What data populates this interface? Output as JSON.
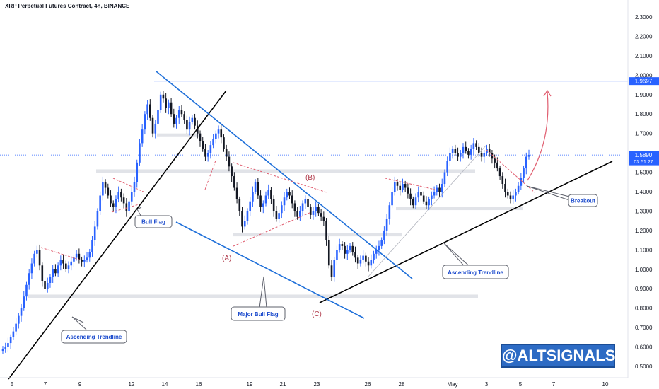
{
  "header": {
    "title": "XRP Perpetual Futures Contract, 4h, BINANCE"
  },
  "watermark": {
    "text": "@ALTSIGNALS"
  },
  "colors": {
    "bull": "#2962ff",
    "bear": "#131722",
    "trend_blue": "#1e6fd9",
    "trend_black": "#000000",
    "pattern_red": "#e05d6f",
    "support_zone": "#e1e3e8"
  },
  "chart_data": {
    "type": "candlestick",
    "title": "XRP Perpetual Futures Contract, 4h, BINANCE",
    "y_axis": {
      "ticks": [
        "2.3000",
        "2.2000",
        "2.1000",
        "2.0000",
        "1.9000",
        "1.8000",
        "1.7000",
        "1.6000",
        "1.5000",
        "1.4000",
        "1.3000",
        "1.2000",
        "1.1000",
        "1.0000",
        "0.9000",
        "0.8000",
        "0.7000",
        "0.6000",
        "0.5000"
      ],
      "tick_values": [
        2.3,
        2.2,
        2.1,
        2.0,
        1.9,
        1.8,
        1.7,
        1.6,
        1.5,
        1.4,
        1.3,
        1.2,
        1.1,
        1.0,
        0.9,
        0.8,
        0.7,
        0.6,
        0.5
      ],
      "range": [
        0.48,
        2.34
      ]
    },
    "x_axis": {
      "ticks": [
        "5",
        "7",
        "9",
        "12",
        "14",
        "16",
        "19",
        "21",
        "23",
        "26",
        "28",
        "May",
        "3",
        "5",
        "7",
        "10"
      ]
    },
    "price_labels": [
      {
        "label": "1.9697",
        "value": 1.9697,
        "color": "#2962ff"
      },
      {
        "label": "1.5890",
        "sub": "03:51:27",
        "value": 1.589,
        "color": "#2962ff"
      }
    ],
    "horizontal_lines": [
      {
        "value": 1.9697,
        "color": "#2962ff"
      }
    ],
    "support_zones": [
      {
        "from": 0.85,
        "to": 0.87,
        "x_from": "6",
        "x_to": "May 4"
      },
      {
        "from": 1.495,
        "to": 1.515,
        "x_from": "10",
        "x_to": "May 2"
      },
      {
        "from": 1.17,
        "to": 1.185,
        "x_from": "19",
        "x_to": "28"
      },
      {
        "from": 1.305,
        "to": 1.32,
        "x_from": "27",
        "x_to": "May 5"
      },
      {
        "from": 1.685,
        "to": 1.7,
        "x_from": "13",
        "x_to": "16"
      }
    ],
    "annotations": [
      {
        "text": "Bull Flag"
      },
      {
        "text": "Ascending Trendline"
      },
      {
        "text": "Major Bull Flag"
      },
      {
        "text": "Ascending Trendline"
      },
      {
        "text": "Breakout"
      }
    ],
    "wave_labels": [
      "(A)",
      "(B)",
      "(C)"
    ],
    "candles_close": [
      0.59,
      0.6,
      0.62,
      0.65,
      0.68,
      0.72,
      0.76,
      0.8,
      0.86,
      0.92,
      0.98,
      1.03,
      1.08,
      1.1,
      1.02,
      0.94,
      0.9,
      0.93,
      0.96,
      1.0,
      0.98,
      1.02,
      1.05,
      1.03,
      1.0,
      1.02,
      1.04,
      1.06,
      1.08,
      1.05,
      1.04,
      1.05,
      1.06,
      1.09,
      1.15,
      1.22,
      1.3,
      1.38,
      1.45,
      1.42,
      1.38,
      1.34,
      1.32,
      1.36,
      1.4,
      1.37,
      1.34,
      1.3,
      1.35,
      1.4,
      1.45,
      1.55,
      1.65,
      1.72,
      1.8,
      1.85,
      1.78,
      1.7,
      1.75,
      1.82,
      1.9,
      1.88,
      1.83,
      1.86,
      1.8,
      1.75,
      1.78,
      1.82,
      1.8,
      1.77,
      1.72,
      1.76,
      1.78,
      1.74,
      1.7,
      1.66,
      1.62,
      1.58,
      1.6,
      1.64,
      1.67,
      1.7,
      1.72,
      1.68,
      1.62,
      1.58,
      1.53,
      1.48,
      1.42,
      1.36,
      1.3,
      1.22,
      1.25,
      1.3,
      1.35,
      1.4,
      1.45,
      1.38,
      1.32,
      1.34,
      1.38,
      1.41,
      1.36,
      1.3,
      1.26,
      1.29,
      1.33,
      1.37,
      1.4,
      1.38,
      1.34,
      1.3,
      1.27,
      1.3,
      1.34,
      1.36,
      1.32,
      1.28,
      1.3,
      1.32,
      1.29,
      1.27,
      1.25,
      1.15,
      1.02,
      0.96,
      1.05,
      1.1,
      1.13,
      1.12,
      1.08,
      1.1,
      1.12,
      1.09,
      1.06,
      1.03,
      1.05,
      1.07,
      1.04,
      1.02,
      1.05,
      1.08,
      1.1,
      1.12,
      1.15,
      1.2,
      1.26,
      1.33,
      1.4,
      1.45,
      1.43,
      1.41,
      1.44,
      1.42,
      1.39,
      1.36,
      1.33,
      1.37,
      1.4,
      1.38,
      1.35,
      1.33,
      1.36,
      1.38,
      1.4,
      1.42,
      1.4,
      1.44,
      1.5,
      1.56,
      1.6,
      1.62,
      1.6,
      1.58,
      1.6,
      1.63,
      1.61,
      1.59,
      1.62,
      1.65,
      1.63,
      1.6,
      1.58,
      1.6,
      1.62,
      1.6,
      1.57,
      1.55,
      1.52,
      1.48,
      1.44,
      1.4,
      1.38,
      1.36,
      1.38,
      1.4,
      1.43,
      1.47,
      1.52,
      1.58,
      1.589
    ]
  }
}
